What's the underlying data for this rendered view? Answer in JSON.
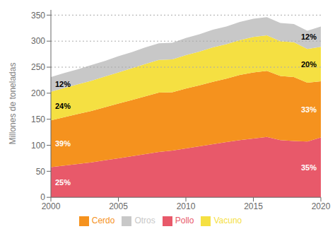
{
  "chart_data": {
    "type": "area",
    "stacked": true,
    "x": [
      2000,
      2001,
      2002,
      2003,
      2004,
      2005,
      2006,
      2007,
      2008,
      2009,
      2010,
      2011,
      2012,
      2013,
      2014,
      2015,
      2016,
      2017,
      2018,
      2019,
      2020
    ],
    "series": [
      {
        "name": "Pollo",
        "color": "#e8596a",
        "values": [
          58,
          61,
          64,
          67,
          71,
          75,
          79,
          83,
          87,
          90,
          94,
          98,
          102,
          106,
          110,
          113,
          116,
          110,
          108,
          107,
          115
        ]
      },
      {
        "name": "Cerdo",
        "color": "#f5921e",
        "values": [
          90,
          93,
          96,
          99,
          102,
          105,
          108,
          111,
          114,
          112,
          115,
          117,
          120,
          122,
          125,
          127,
          127,
          123,
          123,
          113,
          108
        ]
      },
      {
        "name": "Vacuno",
        "color": "#f5e042",
        "values": [
          55,
          56,
          57,
          58,
          59,
          60,
          61,
          62,
          63,
          63,
          64,
          65,
          66,
          66,
          67,
          68,
          68,
          67,
          67,
          65,
          66
        ]
      },
      {
        "name": "Otros",
        "color": "#c8c8c8",
        "values": [
          28,
          29,
          29,
          30,
          30,
          31,
          31,
          32,
          32,
          32,
          33,
          33,
          34,
          34,
          35,
          35,
          35,
          35,
          35,
          35,
          39
        ]
      }
    ],
    "ylabel": "Millones de toneladas",
    "xlim": [
      2000,
      2020
    ],
    "xticks": [
      2000,
      2005,
      2010,
      2015,
      2020
    ],
    "ylim": [
      0,
      360
    ],
    "yticks": [
      0,
      50,
      100,
      150,
      200,
      250,
      300,
      350
    ],
    "hlines": [
      250,
      300,
      350
    ],
    "grid": false,
    "legend": "bottom",
    "annotations": [
      {
        "text": "25%",
        "x": 2000,
        "series": "Pollo",
        "color": "white"
      },
      {
        "text": "39%",
        "x": 2000,
        "series": "Cerdo",
        "color": "white"
      },
      {
        "text": "24%",
        "x": 2000,
        "series": "Vacuno",
        "color": "black"
      },
      {
        "text": "12%",
        "x": 2000,
        "series": "Otros",
        "color": "black"
      },
      {
        "text": "35%",
        "x": 2020,
        "series": "Pollo",
        "color": "white"
      },
      {
        "text": "33%",
        "x": 2020,
        "series": "Cerdo",
        "color": "white"
      },
      {
        "text": "20%",
        "x": 2020,
        "series": "Vacuno",
        "color": "black"
      },
      {
        "text": "12%",
        "x": 2020,
        "series": "Otros",
        "color": "black"
      }
    ]
  }
}
